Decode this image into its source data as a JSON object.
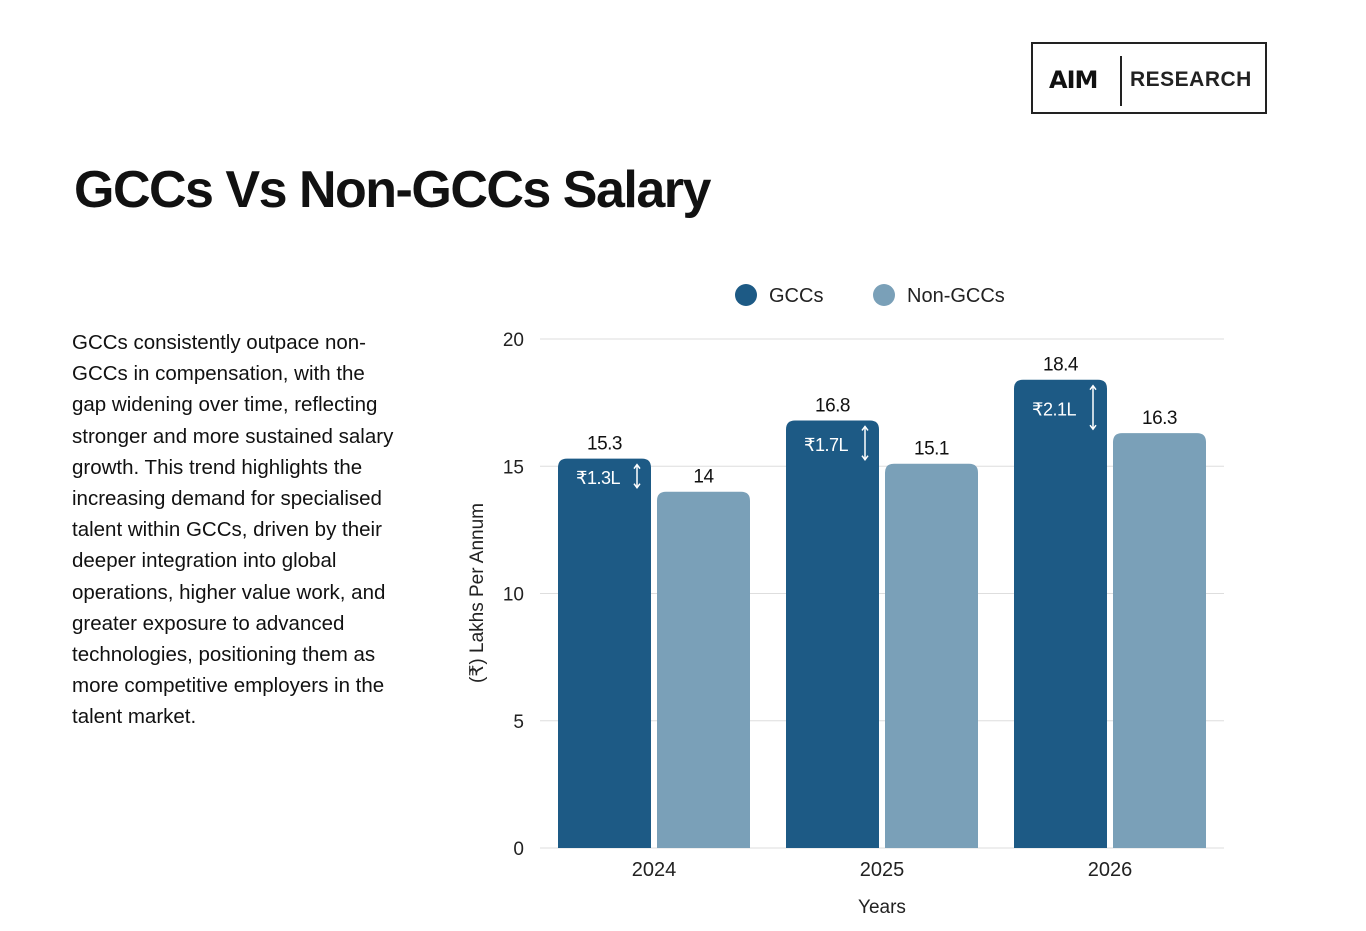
{
  "logo": {
    "mark": "AIM",
    "text": "RESEARCH"
  },
  "description": "GCCs consistently outpace non-GCCs in compensation, with the gap widening over time, reflecting stronger and more sustained salary growth. This trend highlights the increasing demand for specialised talent within GCCs, driven by their deeper integration into global operations, higher value work, and greater exposure to advanced technologies, positioning them as more competitive employers in the talent market.",
  "chart_data": {
    "type": "bar",
    "title": "GCCs Vs Non-GCCs Salary",
    "xlabel": "Years",
    "ylabel": "(₹) Lakhs Per Annum",
    "categories": [
      "2024",
      "2025",
      "2026"
    ],
    "ylim": [
      0,
      20
    ],
    "yticks": [
      0,
      5,
      10,
      15,
      20
    ],
    "grid": true,
    "legend_position": "top",
    "series": [
      {
        "name": "GCCs",
        "values": [
          15.3,
          16.8,
          18.4
        ],
        "color": "#1d5a85",
        "labels": [
          "15.3",
          "16.8",
          "18.4"
        ]
      },
      {
        "name": "Non-GCCs",
        "values": [
          14,
          15.1,
          16.3
        ],
        "color": "#7aa0b8",
        "labels": [
          "14",
          "15.1",
          "16.3"
        ]
      }
    ],
    "gap_annotations": [
      "₹1.3L",
      "₹1.7L",
      "₹2.1L"
    ]
  }
}
